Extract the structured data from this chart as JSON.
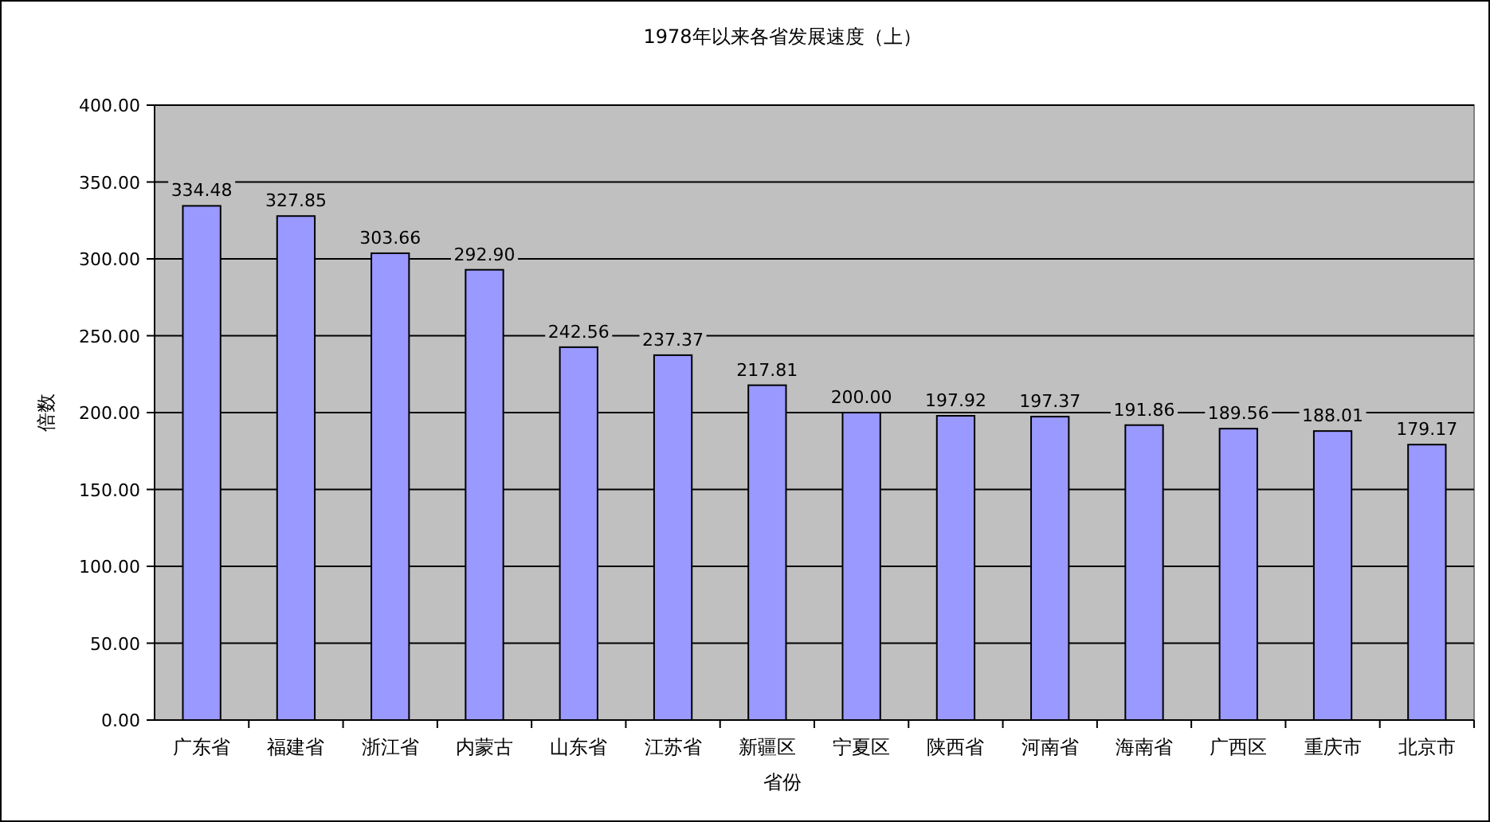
{
  "chart_data": {
    "type": "bar",
    "title": "1978年以来各省发展速度（上）",
    "xlabel": "省份",
    "ylabel": "倍数",
    "categories": [
      "广东省",
      "福建省",
      "浙江省",
      "内蒙古",
      "山东省",
      "江苏省",
      "新疆区",
      "宁夏区",
      "陕西省",
      "河南省",
      "海南省",
      "广西区",
      "重庆市",
      "北京市"
    ],
    "values": [
      334.48,
      327.85,
      303.66,
      292.9,
      242.56,
      237.37,
      217.81,
      200,
      197.92,
      197.37,
      191.86,
      189.56,
      188.01,
      179.17
    ],
    "value_labels": [
      "334.48",
      "327.85",
      "303.66",
      "292.90",
      "242.56",
      "237.37",
      "217.81",
      "200.00",
      "197.92",
      "197.37",
      "191.86",
      "189.56",
      "188.01",
      "179.17"
    ],
    "color": "#9999ff",
    "ylim": [
      0,
      400
    ],
    "yticks": [
      {
        "value": 0,
        "label": "0.00"
      },
      {
        "value": 50,
        "label": "50.00"
      },
      {
        "value": 100,
        "label": "100.00"
      },
      {
        "value": 150,
        "label": "150.00"
      },
      {
        "value": 200,
        "label": "200.00"
      },
      {
        "value": 250,
        "label": "250.00"
      },
      {
        "value": 300,
        "label": "300.00"
      },
      {
        "value": 350,
        "label": "350.00"
      },
      {
        "value": 400,
        "label": "400.00"
      }
    ],
    "grid": "y"
  }
}
